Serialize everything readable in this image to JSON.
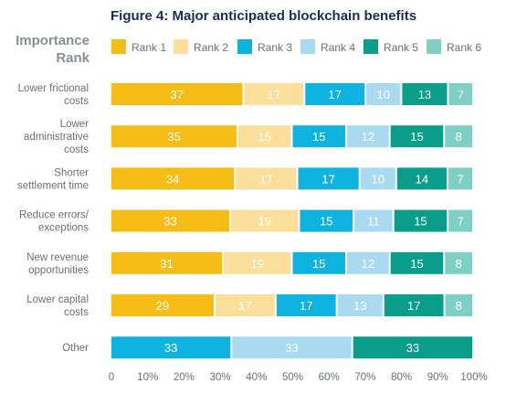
{
  "chart_data": {
    "type": "bar",
    "orientation": "horizontal",
    "stacked": true,
    "normalized_to_100": true,
    "title": "Figure 4: Major anticipated blockchain benefits",
    "legend_title": "Importance Rank",
    "legend_title_lines": [
      "Importance",
      "Rank"
    ],
    "legend_position": "top",
    "categories": [
      {
        "name": "Lower frictional costs",
        "lines": [
          "Lower frictional",
          "costs"
        ]
      },
      {
        "name": "Lower administrative costs",
        "lines": [
          "Lower",
          "administrative",
          "costs"
        ]
      },
      {
        "name": "Shorter settlement time",
        "lines": [
          "Shorter",
          "settlement time"
        ]
      },
      {
        "name": "Reduce errors/ exceptions",
        "lines": [
          "Reduce errors/",
          "exceptions"
        ]
      },
      {
        "name": "New revenue opportunities",
        "lines": [
          "New revenue",
          "opportunities"
        ]
      },
      {
        "name": "Lower capital costs",
        "lines": [
          "Lower capital",
          "costs"
        ]
      },
      {
        "name": "Other",
        "lines": [
          "Other"
        ]
      }
    ],
    "series": [
      {
        "name": "Rank 1",
        "color": "#f6bd16",
        "values": [
          37,
          35,
          34,
          33,
          31,
          29,
          0
        ]
      },
      {
        "name": "Rank 2",
        "color": "#fbdf9a",
        "values": [
          17,
          15,
          17,
          19,
          19,
          17,
          0
        ]
      },
      {
        "name": "Rank 3",
        "color": "#0fb3e0",
        "values": [
          17,
          15,
          17,
          15,
          15,
          17,
          33
        ]
      },
      {
        "name": "Rank 4",
        "color": "#a9daf0",
        "values": [
          10,
          12,
          10,
          11,
          12,
          13,
          33
        ]
      },
      {
        "name": "Rank 5",
        "color": "#0a9e8a",
        "values": [
          13,
          15,
          14,
          15,
          15,
          17,
          33
        ]
      },
      {
        "name": "Rank 6",
        "color": "#7fcfc4",
        "values": [
          7,
          8,
          7,
          7,
          8,
          8,
          0
        ]
      }
    ],
    "xlim": [
      0,
      100
    ],
    "xticks": [
      "0",
      "10%",
      "20%",
      "30%",
      "40%",
      "50%",
      "60%",
      "70%",
      "80%",
      "90%",
      "100%"
    ],
    "grid": false
  }
}
